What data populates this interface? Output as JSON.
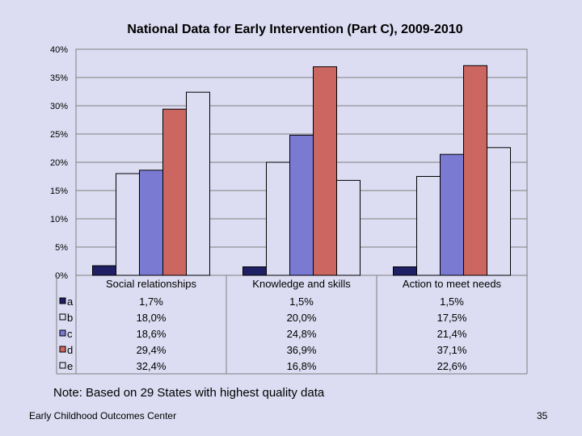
{
  "chart_data": {
    "type": "bar",
    "title": "National Data for Early Intervention (Part C),  2009-2010",
    "categories": [
      "Social relationships",
      "Knowledge and skills",
      "Action to meet needs"
    ],
    "series": [
      {
        "name": "a",
        "values": [
          1.7,
          1.5,
          1.5
        ],
        "labels": [
          "1,7%",
          "1,5%",
          "1,5%"
        ],
        "color": "#1f1f66"
      },
      {
        "name": "b",
        "values": [
          18.0,
          20.0,
          17.5
        ],
        "labels": [
          "18,0%",
          "20,0%",
          "17,5%"
        ],
        "color": "#dcdcf2"
      },
      {
        "name": "c",
        "values": [
          18.6,
          24.8,
          21.4
        ],
        "labels": [
          "18,6%",
          "24,8%",
          "21,4%"
        ],
        "color": "#7a7ad2"
      },
      {
        "name": "d",
        "values": [
          29.4,
          36.9,
          37.1
        ],
        "labels": [
          "29,4%",
          "36,9%",
          "37,1%"
        ],
        "color": "#cc6660"
      },
      {
        "name": "e",
        "values": [
          32.4,
          16.8,
          22.6
        ],
        "labels": [
          "32,4%",
          "16,8%",
          "22,6%"
        ],
        "color": "#dcdcf2"
      }
    ],
    "ylim": [
      0,
      40
    ],
    "yticks": [
      "0%",
      "5%",
      "10%",
      "15%",
      "20%",
      "25%",
      "30%",
      "35%",
      "40%"
    ],
    "legend": "data-table-below"
  },
  "note": "Note:  Based on 29 States with highest quality data",
  "footer": {
    "left": "Early Childhood Outcomes Center",
    "page_number": "35"
  }
}
